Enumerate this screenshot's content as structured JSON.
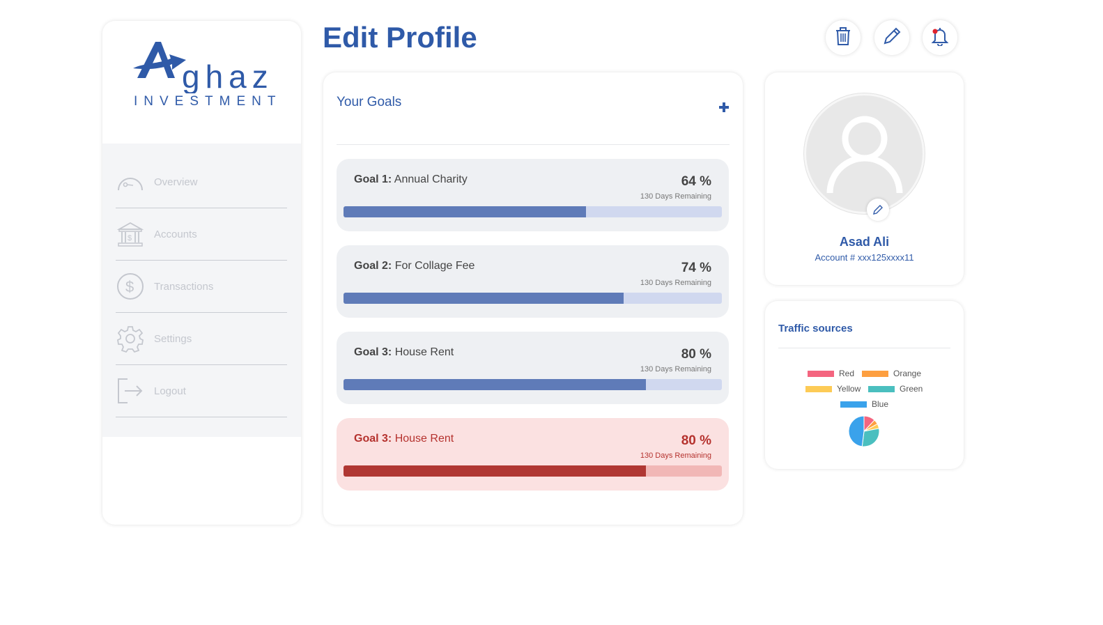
{
  "brand": {
    "word": "Aghaz",
    "sub": "INVESTMENT",
    "color": "#2f5aa8"
  },
  "nav": {
    "items": [
      {
        "label": "Overview",
        "icon": "gauge-icon"
      },
      {
        "label": "Accounts",
        "icon": "bank-icon"
      },
      {
        "label": "Transactions",
        "icon": "dollar-circle-icon"
      },
      {
        "label": "Settings",
        "icon": "gear-icon"
      },
      {
        "label": "Logout",
        "icon": "logout-icon"
      }
    ]
  },
  "header": {
    "title": "Edit Profile",
    "actions": [
      "trash-icon",
      "pencil-icon",
      "bell-icon"
    ]
  },
  "goals": {
    "title": "Your Goals",
    "add_icon": "plus-icon",
    "items": [
      {
        "prefix": "Goal 1:",
        "name": "Annual Charity",
        "percent_text": "64 %",
        "percent": 64,
        "remaining": "130 Days Remaining",
        "alert": false
      },
      {
        "prefix": "Goal 2:",
        "name": "For Collage Fee",
        "percent_text": "74 %",
        "percent": 74,
        "remaining": "130 Days Remaining",
        "alert": false
      },
      {
        "prefix": "Goal 3:",
        "name": "House Rent",
        "percent_text": "80 %",
        "percent": 80,
        "remaining": "130 Days Remaining",
        "alert": false
      },
      {
        "prefix": "Goal 3:",
        "name": "House Rent",
        "percent_text": "80 %",
        "percent": 80,
        "remaining": "130 Days Remaining",
        "alert": true
      }
    ]
  },
  "profile": {
    "name": "Asad Ali",
    "account": "Account # xxx125xxxx11"
  },
  "traffic": {
    "title": "Traffic sources",
    "chart_data": {
      "type": "pie",
      "categories": [
        "Red",
        "Orange",
        "Yellow",
        "Green",
        "Blue"
      ],
      "values": [
        12,
        5,
        5,
        30,
        48
      ],
      "colors": [
        "#f4657f",
        "#fd9f40",
        "#fdcb56",
        "#4abfbf",
        "#3aa2eb"
      ],
      "legend": "top"
    }
  }
}
